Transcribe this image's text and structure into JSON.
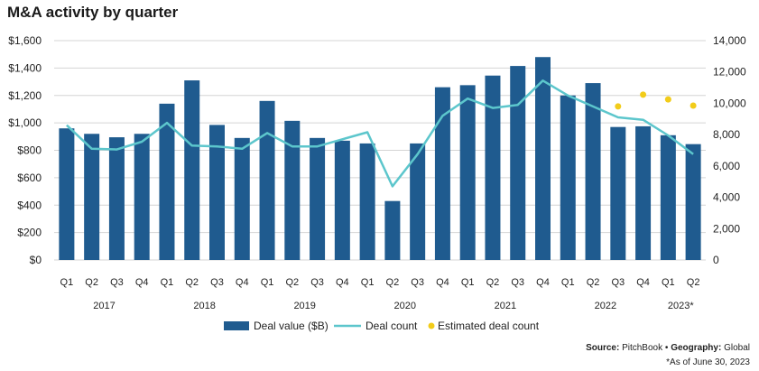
{
  "chart_data": {
    "type": "bar",
    "title": "M&A activity by quarter",
    "categories": [
      "Q1",
      "Q2",
      "Q3",
      "Q4",
      "Q1",
      "Q2",
      "Q3",
      "Q4",
      "Q1",
      "Q2",
      "Q3",
      "Q4",
      "Q1",
      "Q2",
      "Q3",
      "Q4",
      "Q1",
      "Q2",
      "Q3",
      "Q4",
      "Q1",
      "Q2",
      "Q3",
      "Q4",
      "Q1",
      "Q2"
    ],
    "years": [
      {
        "label": "2017",
        "start": 0,
        "end": 3
      },
      {
        "label": "2018",
        "start": 4,
        "end": 7
      },
      {
        "label": "2019",
        "start": 8,
        "end": 11
      },
      {
        "label": "2020",
        "start": 12,
        "end": 15
      },
      {
        "label": "2021",
        "start": 16,
        "end": 19
      },
      {
        "label": "2022",
        "start": 20,
        "end": 23
      },
      {
        "label": "2023*",
        "start": 24,
        "end": 25
      }
    ],
    "series": [
      {
        "name": "Deal value ($B)",
        "kind": "bar",
        "axis": "left",
        "color": "#1f5b8f",
        "values": [
          960,
          920,
          895,
          920,
          1140,
          1310,
          985,
          890,
          1160,
          1015,
          890,
          870,
          850,
          430,
          850,
          1260,
          1275,
          1345,
          1415,
          1480,
          1200,
          1290,
          970,
          975,
          910,
          845
        ]
      },
      {
        "name": "Deal count",
        "kind": "line",
        "axis": "right",
        "color": "#5cc6cc",
        "values": [
          8600,
          7100,
          7050,
          7550,
          8750,
          7300,
          7250,
          7100,
          8100,
          7250,
          7250,
          7700,
          8150,
          4700,
          6750,
          9200,
          10300,
          9700,
          9900,
          11450,
          10500,
          9800,
          9100,
          8950,
          7950,
          6750
        ]
      },
      {
        "name": "Estimated deal count",
        "kind": "scatter",
        "axis": "right",
        "color": "#f2cc1a",
        "x_index": [
          22,
          23,
          24,
          25
        ],
        "values": [
          9800,
          10550,
          10250,
          9850
        ]
      }
    ],
    "y_left": {
      "min": 0,
      "max": 1600,
      "step": 200,
      "tick_labels": [
        "$0",
        "$200",
        "$400",
        "$600",
        "$800",
        "$1,000",
        "$1,200",
        "$1,400",
        "$1,600"
      ]
    },
    "y_right": {
      "min": 0,
      "max": 14000,
      "step": 2000,
      "tick_labels": [
        "0",
        "2,000",
        "4,000",
        "6,000",
        "8,000",
        "10,000",
        "12,000",
        "14,000"
      ]
    },
    "grid": true,
    "legend_position": "bottom-center"
  },
  "source": {
    "label": "Source:",
    "value": "PitchBook",
    "separator": "•",
    "geo_label": "Geography:",
    "geo_value": "Global"
  },
  "footnote": "*As of June 30, 2023"
}
